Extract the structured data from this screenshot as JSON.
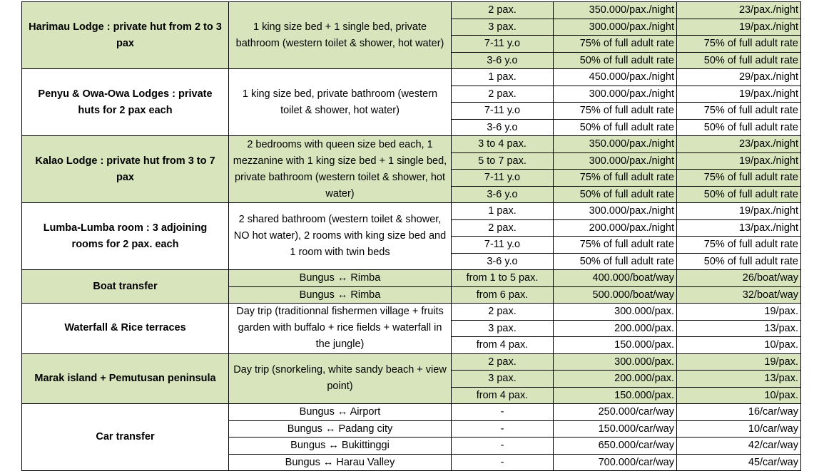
{
  "groups": [
    {
      "name": "Harimau Lodge : private hut from 2 to 3 pax",
      "description": "1 king size bed + 1 single bed, private bathroom (western toilet & shower, hot water)",
      "rows": [
        [
          "2 pax.",
          "350.000/pax./night",
          "23/pax./night"
        ],
        [
          "3 pax.",
          "300.000/pax./night",
          "19/pax./night"
        ],
        [
          "7-11 y.o",
          "75% of full adult rate",
          "75% of full adult rate"
        ],
        [
          "3-6 y.o",
          "50% of full adult rate",
          "50% of full adult rate"
        ]
      ]
    },
    {
      "name": "Penyu & Owa-Owa Lodges : private huts for 2 pax each",
      "description": "1 king size bed, private bathroom (western toilet & shower, hot water)",
      "rows": [
        [
          "1 pax.",
          "450.000/pax./night",
          "29/pax./night"
        ],
        [
          "2 pax.",
          "300.000/pax./night",
          "19/pax./night"
        ],
        [
          "7-11 y.o",
          "75% of full adult rate",
          "75% of full adult rate"
        ],
        [
          "3-6 y.o",
          "50% of full adult rate",
          "50% of full adult rate"
        ]
      ]
    },
    {
      "name": "Kalao Lodge : private hut from 3 to 7 pax",
      "description": "2 bedrooms with queen size bed each, 1 mezzanine with 1 king size bed + 1 single bed, private bathroom (western toilet & shower, hot water)",
      "rows": [
        [
          "3 to 4 pax.",
          "350.000/pax./night",
          "23/pax./night"
        ],
        [
          "5 to 7 pax.",
          "300.000/pax./night",
          "19/pax./night"
        ],
        [
          "7-11 y.o",
          "75% of full adult rate",
          "75% of full adult rate"
        ],
        [
          "3-6 y.o",
          "50% of full adult rate",
          "50% of full adult rate"
        ]
      ]
    },
    {
      "name": "Lumba-Lumba room :  3 adjoining rooms for 2 pax. each",
      "description": "2 shared bathroom (western toilet & shower, NO hot water), 2 rooms with king size bed and 1 room with twin beds",
      "rows": [
        [
          "1 pax.",
          "300.000/pax./night",
          "19/pax./night"
        ],
        [
          "2 pax.",
          "200.000/pax./night",
          "13/pax./night"
        ],
        [
          "7-11 y.o",
          "75% of full adult rate",
          "75% of full adult rate"
        ],
        [
          "3-6 y.o",
          "50% of full adult rate",
          "50% of full adult rate"
        ]
      ]
    },
    {
      "name": "Boat transfer",
      "rows": [
        [
          "Bungus ↔ Rimba",
          "from 1 to 5 pax.",
          "400.000/boat/way",
          "26/boat/way"
        ],
        [
          "Bungus ↔ Rimba",
          "from 6 pax.",
          "500.000/boat/way",
          "32/boat/way"
        ]
      ]
    },
    {
      "name": "Waterfall & Rice terraces",
      "description": "Day trip (traditionnal fishermen village + fruits garden with buffalo + rice fields + waterfall in the jungle)",
      "rows": [
        [
          "2 pax.",
          "300.000/pax.",
          "19/pax."
        ],
        [
          "3 pax.",
          "200.000/pax.",
          "13/pax."
        ],
        [
          "from 4 pax.",
          "150.000/pax.",
          "10/pax."
        ]
      ]
    },
    {
      "name": "Marak island + Pemutusan peninsula",
      "description": "Day trip (snorkeling, white sandy beach + view point)",
      "rows": [
        [
          "2 pax.",
          "300.000/pax.",
          "19/pax."
        ],
        [
          "3 pax.",
          "200.000/pax.",
          "13/pax."
        ],
        [
          "from 4 pax.",
          "150.000/pax.",
          "10/pax."
        ]
      ]
    },
    {
      "name": "Car transfer",
      "rows": [
        [
          "Bungus ↔ Airport",
          "-",
          "250.000/car/way",
          "16/car/way"
        ],
        [
          "Bungus ↔ Padang city",
          "-",
          "150.000/car/way",
          "10/car/way"
        ],
        [
          "Bungus ↔ Bukittinggi",
          "-",
          "650.000/car/way",
          "42/car/way"
        ],
        [
          "Bungus ↔ Harau Valley",
          "-",
          "700.000/car/way",
          "45/car/way"
        ]
      ]
    }
  ]
}
